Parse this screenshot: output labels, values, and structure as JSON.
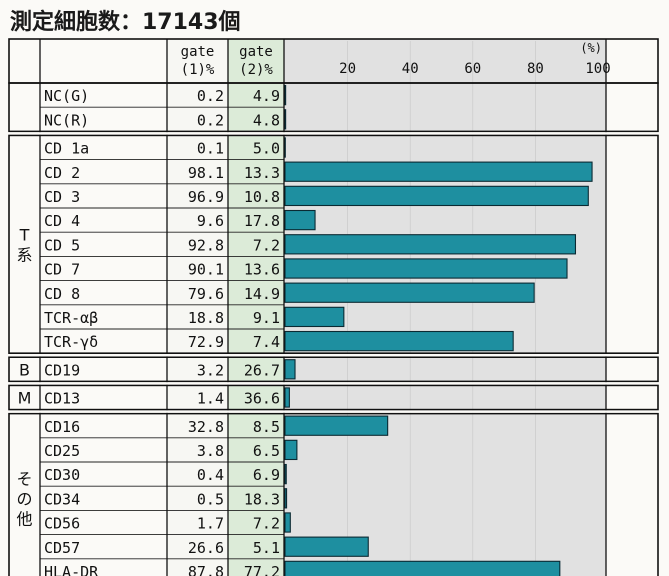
{
  "title": "測定細胞数：17143個",
  "columns": {
    "gate1": [
      "gate",
      "(1)%"
    ],
    "gate2": [
      "gate",
      "(2)%"
    ],
    "unit": "(%)"
  },
  "groups": [
    {
      "label": "",
      "count": 2
    },
    {
      "label": "T系",
      "count": 9
    },
    {
      "label": "B",
      "count": 1
    },
    {
      "label": "M",
      "count": 1
    },
    {
      "label": "その他",
      "count": 7
    }
  ],
  "chart_data": {
    "type": "bar",
    "title": "測定細胞数：17143個",
    "xlim": [
      0,
      100
    ],
    "ticks": [
      "20",
      "40",
      "60",
      "80",
      "100"
    ],
    "tick_values": [
      20,
      40,
      60,
      80,
      100
    ],
    "bar_color": "#1e8fa0",
    "categories": [
      "NC(G)",
      "NC(R)",
      "CD 1a",
      "CD 2",
      "CD 3",
      "CD 4",
      "CD 5",
      "CD 7",
      "CD 8",
      "TCR-αβ",
      "TCR-γδ",
      "CD19",
      "CD13",
      "CD16",
      "CD25",
      "CD30",
      "CD34",
      "CD56",
      "CD57",
      "HLA-DR"
    ],
    "gate1": [
      "0.2",
      "0.2",
      "0.1",
      "98.1",
      "96.9",
      "9.6",
      "92.8",
      "90.1",
      "79.6",
      "18.8",
      "72.9",
      "3.2",
      "1.4",
      "32.8",
      "3.8",
      "0.4",
      "0.5",
      "1.7",
      "26.6",
      "87.8"
    ],
    "gate2": [
      "4.9",
      "4.8",
      "5.0",
      "13.3",
      "10.8",
      "17.8",
      "7.2",
      "13.6",
      "14.9",
      "9.1",
      "7.4",
      "26.7",
      "36.6",
      "8.5",
      "6.5",
      "6.9",
      "18.3",
      "7.2",
      "5.1",
      "77.2"
    ],
    "values": [
      0.2,
      0.2,
      0.1,
      98.1,
      96.9,
      9.6,
      92.8,
      90.1,
      79.6,
      18.8,
      72.9,
      3.2,
      1.4,
      32.8,
      3.8,
      0.4,
      0.5,
      1.7,
      26.6,
      87.8
    ]
  }
}
